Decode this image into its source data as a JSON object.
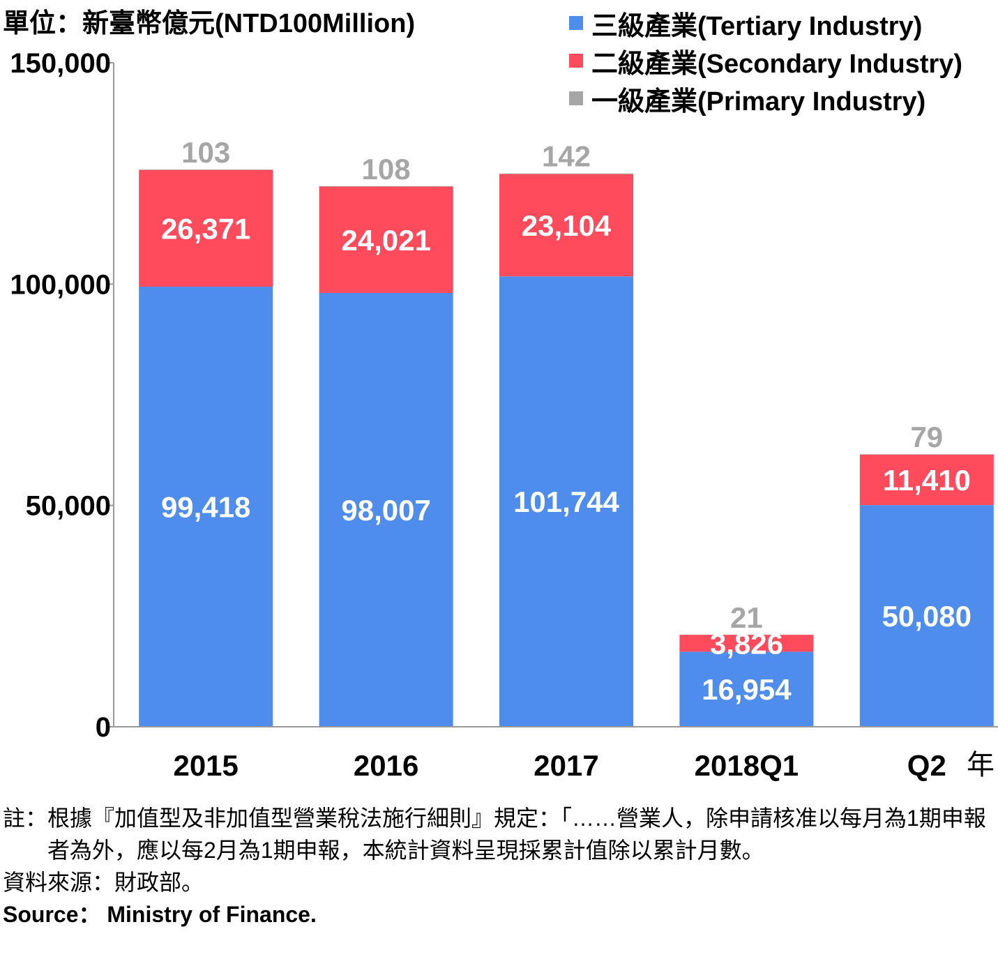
{
  "unit_label": "單位：新臺幣億元(NTD100Million)",
  "x_unit_label": "年",
  "colors": {
    "tertiary": "#4F8DED",
    "secondary": "#FF4B5C",
    "primary": "#A6A6A6",
    "axis": "#999999"
  },
  "chart_data": {
    "type": "bar",
    "stacked": true,
    "categories": [
      "2015",
      "2016",
      "2017",
      "2018Q1",
      "Q2"
    ],
    "series": [
      {
        "name": "三級產業(Tertiary Industry)",
        "key": "tertiary",
        "values": [
          99418,
          98007,
          101744,
          16954,
          50080
        ],
        "labels": [
          "99,418",
          "98,007",
          "101,744",
          "16,954",
          "50,080"
        ]
      },
      {
        "name": "二級產業(Secondary Industry)",
        "key": "secondary",
        "values": [
          26371,
          24021,
          23104,
          3826,
          11410
        ],
        "labels": [
          "26,371",
          "24,021",
          "23,104",
          "3,826",
          "11,410"
        ]
      },
      {
        "name": "一級產業(Primary Industry)",
        "key": "primary",
        "values": [
          103,
          108,
          142,
          21,
          79
        ],
        "labels": [
          "103",
          "108",
          "142",
          "21",
          "79"
        ]
      }
    ],
    "ylim": [
      0,
      150000
    ],
    "yticks": [
      0,
      50000,
      100000,
      150000
    ],
    "ytick_labels": [
      "0",
      "50,000",
      "100,000",
      "150,000"
    ],
    "legend_position": "top-right",
    "grid": false
  },
  "notes": {
    "note_prefix": "註：",
    "note_text": "根據『加值型及非加值型營業稅法施行細則』規定：「……營業人，除申請核准以每月為1期申報者為外，應以每2月為1期申報，本統計資料呈現採累計值除以累計月數。",
    "source_zh": "資料來源：財政部。",
    "source_en": "Source： Ministry of Finance."
  }
}
